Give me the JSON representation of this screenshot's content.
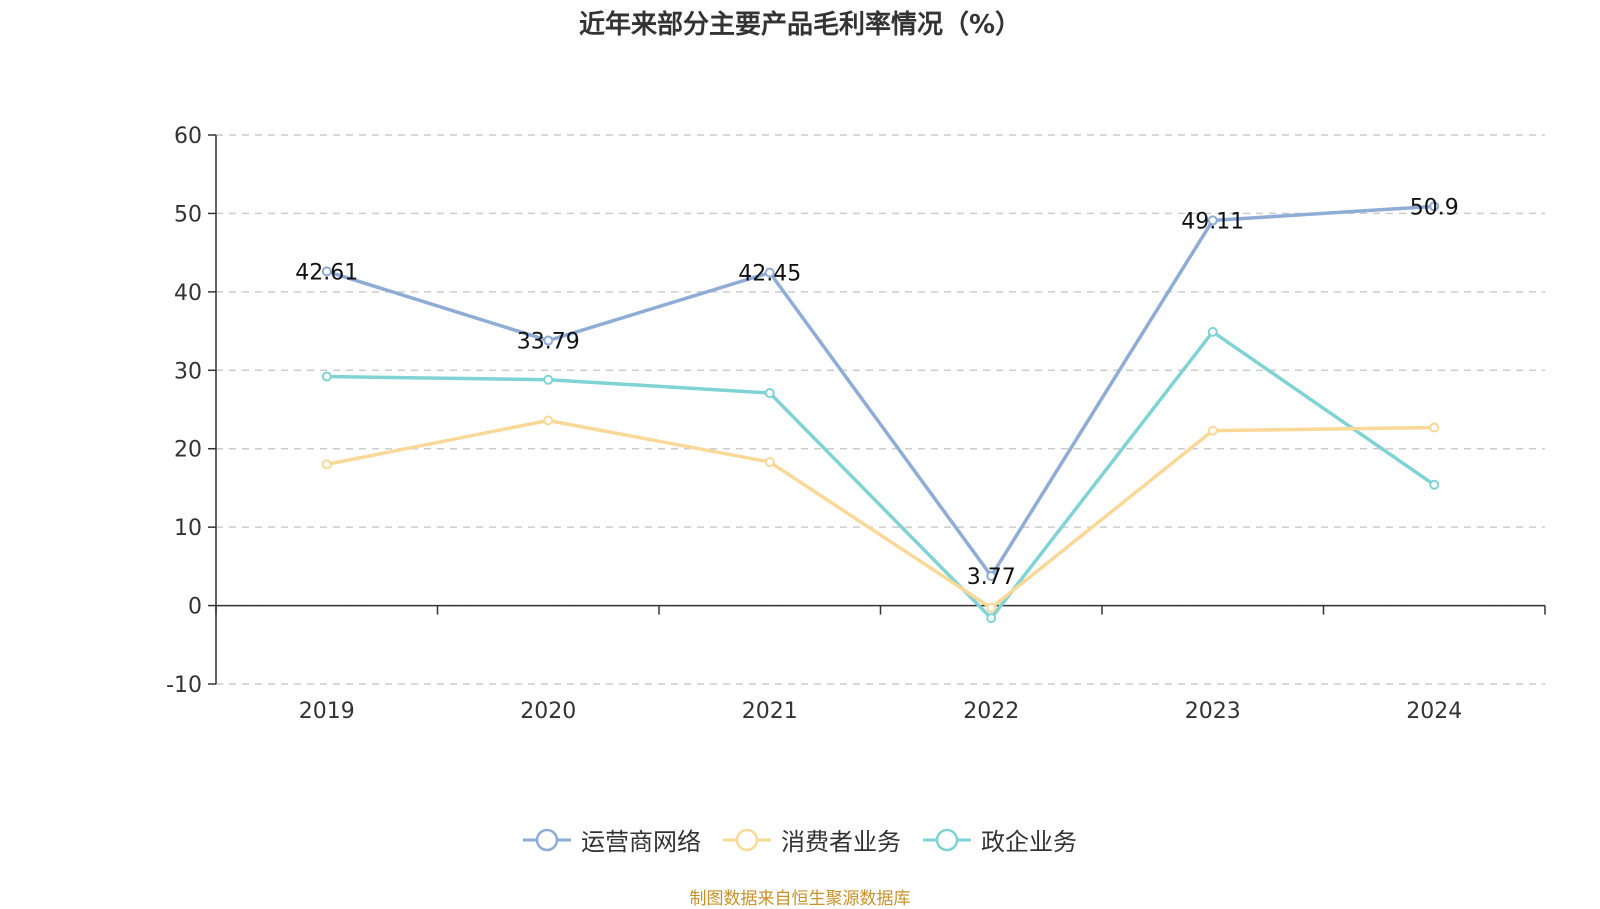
{
  "title": "近年来部分主要产品毛利率情况（%）",
  "source_note": "制图数据来自恒生聚源数据库",
  "chart_data": {
    "type": "line",
    "title": "近年来部分主要产品毛利率情况（%）",
    "categories": [
      "2019",
      "2020",
      "2021",
      "2022",
      "2023",
      "2024"
    ],
    "ylim": [
      -10,
      60
    ],
    "yticks": [
      -10,
      0,
      10,
      20,
      30,
      40,
      50,
      60
    ],
    "grid": true,
    "legend_position": "bottom",
    "series": [
      {
        "name": "运营商网络",
        "color": "#8eacd6",
        "values": [
          42.61,
          33.79,
          42.45,
          3.77,
          49.11,
          50.9
        ],
        "show_labels": true
      },
      {
        "name": "消费者业务",
        "color": "#f9d898",
        "values": [
          18.0,
          23.6,
          18.3,
          -0.3,
          22.3,
          22.7
        ],
        "show_labels": false
      },
      {
        "name": "政企业务",
        "color": "#80d3d5",
        "values": [
          29.2,
          28.8,
          27.1,
          -1.6,
          34.9,
          15.4
        ],
        "show_labels": false
      }
    ]
  }
}
